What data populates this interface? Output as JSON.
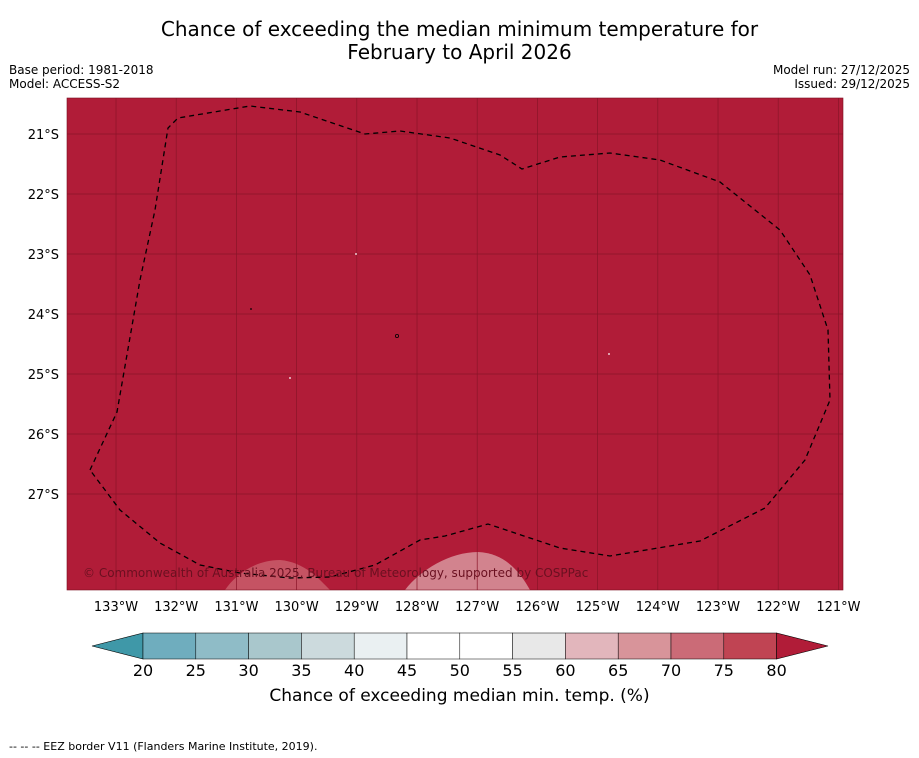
{
  "header": {
    "title_line1": "Chance of exceeding the median minimum temperature for",
    "title_line2": "February to April 2026",
    "base_period": "Base period: 1981-2018",
    "model": "Model: ACCESS-S2",
    "model_run": "Model run: 27/12/2025",
    "issued": "Issued: 29/12/2025"
  },
  "map": {
    "lat_labels": [
      "21°S",
      "22°S",
      "23°S",
      "24°S",
      "25°S",
      "26°S",
      "27°S"
    ],
    "lon_labels": [
      "133°W",
      "132°W",
      "131°W",
      "130°W",
      "129°W",
      "128°W",
      "127°W",
      "126°W",
      "125°W",
      "124°W",
      "123°W",
      "122°W",
      "121°W"
    ],
    "fill_color": "#b11c38",
    "light_patch_color": "#d68f98",
    "grid_color": "#8a1428",
    "copyright": "© Commonwealth of Australia 2025, Bureau of Meteorology, supported by COSPPac"
  },
  "colorbar": {
    "ticks": [
      "20",
      "25",
      "30",
      "35",
      "40",
      "45",
      "50",
      "55",
      "60",
      "65",
      "70",
      "75",
      "80"
    ],
    "colors": [
      "#3f98a8",
      "#6fadbe",
      "#8fbcc7",
      "#a9c7cc",
      "#ccdadd",
      "#eaf0f2",
      "#ffffff",
      "#ffffff",
      "#e8e8e8",
      "#e2b6bc",
      "#d8949a",
      "#cb6b77",
      "#c04453",
      "#b11c38"
    ],
    "label": "Chance of exceeding median min. temp. (%)"
  },
  "footnote": "--  --  -- EEZ border V11 (Flanders Marine Institute, 2019)."
}
